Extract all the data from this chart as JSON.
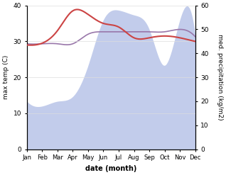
{
  "months": [
    "Jan",
    "Feb",
    "Mar",
    "Apr",
    "May",
    "Jun",
    "Jul",
    "Aug",
    "Sep",
    "Oct",
    "Nov",
    "Dec"
  ],
  "month_indices": [
    1,
    2,
    3,
    4,
    5,
    6,
    7,
    8,
    9,
    10,
    11,
    12
  ],
  "temp_max": [
    29,
    29.5,
    33,
    38.5,
    37.5,
    35,
    34,
    31,
    31,
    31.5,
    31,
    30
  ],
  "precip": [
    20,
    18,
    20,
    22,
    35,
    54,
    58,
    56,
    50,
    35,
    54,
    48
  ],
  "precip_median": [
    44,
    44,
    44,
    44,
    48,
    49,
    49,
    49,
    49,
    49,
    50,
    47
  ],
  "temp_color": "#cc4444",
  "precip_line_color": "#9977aa",
  "precip_fill_color": "#b8c4e8",
  "precip_fill_alpha": 0.85,
  "temp_ylim": [
    0,
    40
  ],
  "precip_ylim": [
    0,
    60
  ],
  "temp_yticks": [
    0,
    10,
    20,
    30,
    40
  ],
  "precip_yticks": [
    0,
    10,
    20,
    30,
    40,
    50,
    60
  ],
  "ylabel_left": "max temp (C)",
  "ylabel_right": "med. precipitation (kg/m2)",
  "xlabel": "date (month)",
  "background_color": "#ffffff",
  "fig_width": 3.18,
  "fig_height": 2.47,
  "dpi": 100
}
